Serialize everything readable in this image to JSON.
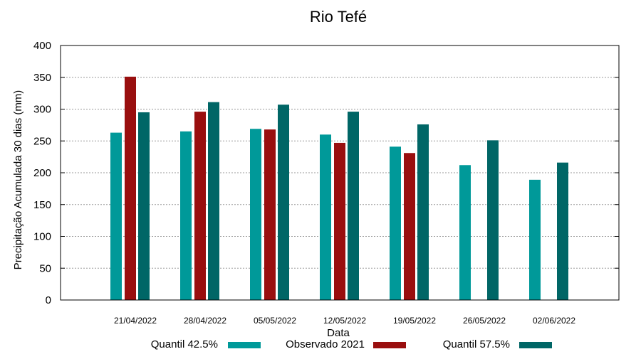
{
  "chart_data": {
    "type": "bar",
    "title": "Rio Tefé",
    "xlabel": "Data",
    "ylabel": "Precipitação Acumulada 30 dias (mm)",
    "ylim": [
      0,
      400
    ],
    "yticks": [
      0,
      50,
      100,
      150,
      200,
      250,
      300,
      350,
      400
    ],
    "grid": true,
    "legend_position": "bottom",
    "categories": [
      "21/04/2022",
      "28/04/2022",
      "05/05/2022",
      "12/05/2022",
      "19/05/2022",
      "26/05/2022",
      "02/06/2022"
    ],
    "series": [
      {
        "name": "Quantil 42.5%",
        "color": "#009999",
        "values": [
          263,
          265,
          269,
          260,
          241,
          212,
          189
        ]
      },
      {
        "name": "Observado 2021",
        "color": "#990f0f",
        "values": [
          351,
          296,
          268,
          247,
          231,
          null,
          null
        ]
      },
      {
        "name": "Quantil 57.5%",
        "color": "#006666",
        "values": [
          295,
          311,
          307,
          296,
          276,
          251,
          216
        ]
      }
    ]
  }
}
